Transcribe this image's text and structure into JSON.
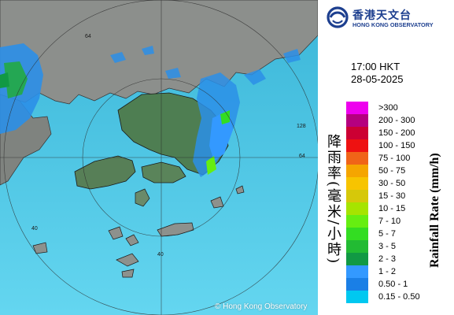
{
  "map": {
    "copyright": "© Hong Kong Observatory",
    "ring_labels": [
      "64",
      "128",
      "64",
      "40",
      "40"
    ]
  },
  "logo": {
    "chinese": "香港天文台",
    "english": "HONG KONG OBSERVATORY"
  },
  "timestamp": {
    "time": "17:00 HKT",
    "date": "28-05-2025"
  },
  "legend": {
    "title_en": "Rainfall Rate (mm/h)",
    "title_cn": "降雨率(毫米/小時)",
    "items": [
      {
        "label": ">300",
        "color": "#ee00ee"
      },
      {
        "label": "200 - 300",
        "color": "#b5007f"
      },
      {
        "label": "150 - 200",
        "color": "#cc0033"
      },
      {
        "label": "100 - 150",
        "color": "#ee1111"
      },
      {
        "label": "75 - 100",
        "color": "#f06418"
      },
      {
        "label": "50 - 75",
        "color": "#f5a500"
      },
      {
        "label": "30 - 50",
        "color": "#f7c400"
      },
      {
        "label": "15 - 30",
        "color": "#d6c80a"
      },
      {
        "label": "10 - 15",
        "color": "#a6e400"
      },
      {
        "label": "7 - 10",
        "color": "#66ee11"
      },
      {
        "label": "5 - 7",
        "color": "#33dd22"
      },
      {
        "label": "3 - 5",
        "color": "#22bb33"
      },
      {
        "label": "2 - 3",
        "color": "#119944"
      },
      {
        "label": "1 - 2",
        "color": "#3399ff"
      },
      {
        "label": "0.50 - 1",
        "color": "#1a7fe6"
      },
      {
        "label": "0.15 - 0.50",
        "color": "#00c8f0"
      }
    ]
  }
}
